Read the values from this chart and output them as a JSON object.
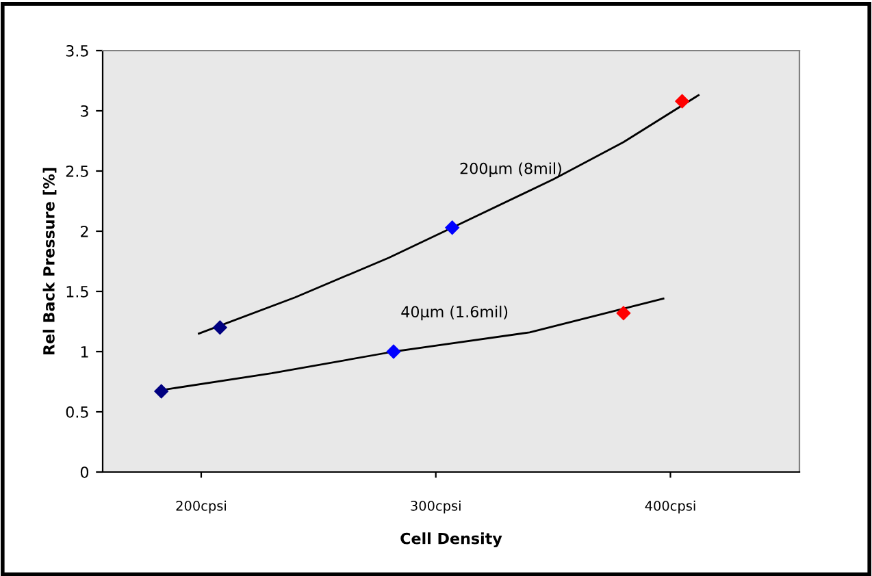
{
  "chart_data": {
    "type": "line",
    "xlabel": "Cell Density",
    "ylabel": "Rel Back Pressure [%]",
    "xlim": [
      158,
      455
    ],
    "xticks": [
      {
        "value": 200,
        "label": "200cpsi"
      },
      {
        "value": 300,
        "label": "300cpsi"
      },
      {
        "value": 400,
        "label": "400cpsi"
      }
    ],
    "ylim": [
      0,
      3.5
    ],
    "yticks": [
      0,
      0.5,
      1,
      1.5,
      2,
      2.5,
      3,
      3.5
    ],
    "grid": false,
    "legend": false,
    "marker": "diamond",
    "series": [
      {
        "type": "scatter",
        "x": [
          208,
          307,
          405
        ],
        "values": [
          1.2,
          2.03,
          3.08
        ],
        "colors": [
          "#000080",
          "#0000ff",
          "#ff0000"
        ]
      },
      {
        "type": "scatter",
        "x": [
          183,
          282,
          380
        ],
        "values": [
          0.67,
          1.0,
          1.32
        ],
        "colors": [
          "#000080",
          "#0000ff",
          "#ff0000"
        ]
      },
      {
        "color": "#000000",
        "marker": "none",
        "x": [
          199,
          240,
          280,
          307,
          350,
          380,
          412
        ],
        "values": [
          1.15,
          1.45,
          1.78,
          2.03,
          2.43,
          2.74,
          3.13
        ]
      },
      {
        "color": "#000000",
        "marker": "none",
        "x": [
          183,
          230,
          282,
          340,
          397
        ],
        "values": [
          0.68,
          0.82,
          1.0,
          1.16,
          1.44
        ]
      }
    ],
    "annotations": [
      {
        "text": "200µm (8mil)",
        "x": 332,
        "y": 2.26
      },
      {
        "text": "40µm (1.6mil)",
        "x": 308,
        "y": 1.07
      }
    ]
  }
}
